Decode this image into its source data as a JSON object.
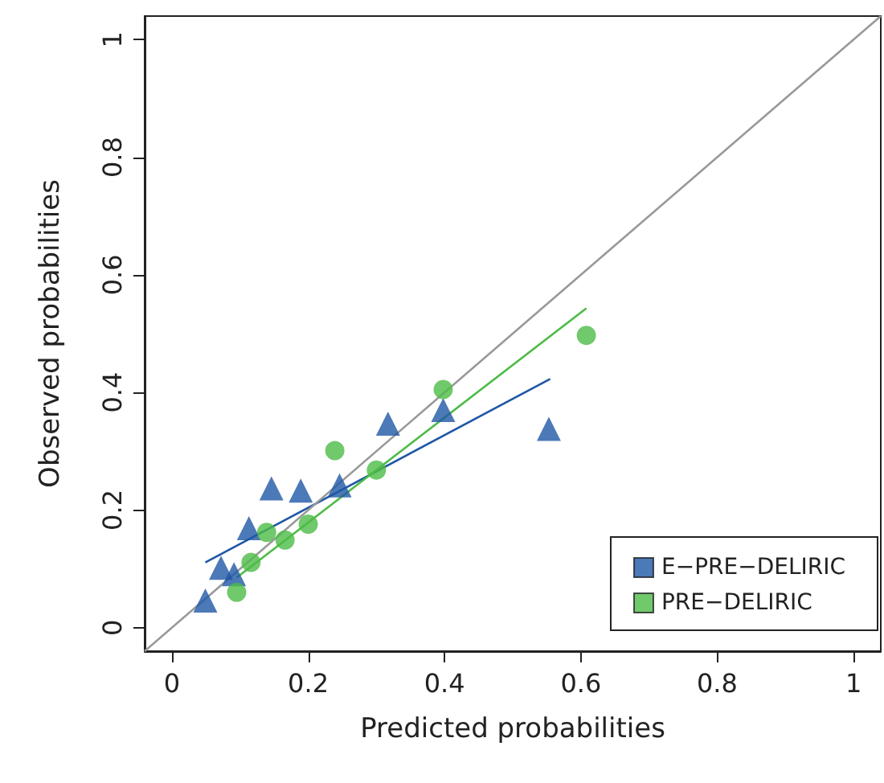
{
  "chart_data": {
    "type": "scatter",
    "xlabel": "Predicted probabilities",
    "ylabel": "Observed probabilities",
    "xlim": [
      -0.04,
      1.04
    ],
    "ylim": [
      -0.04,
      1.04
    ],
    "xticks": [
      0,
      0.2,
      0.4,
      0.6,
      0.8,
      1
    ],
    "yticks": [
      0,
      0.2,
      0.4,
      0.6,
      0.8,
      1
    ],
    "grid": false,
    "legend": "bottom right",
    "series": [
      {
        "name": "E−PRE−DELIRIC",
        "color": "#1f57a5",
        "marker": "triangle",
        "x": [
          0.049,
          0.072,
          0.091,
          0.113,
          0.146,
          0.189,
          0.246,
          0.317,
          0.398,
          0.553
        ],
        "values": [
          0.046,
          0.102,
          0.091,
          0.169,
          0.237,
          0.233,
          0.242,
          0.347,
          0.37,
          0.338
        ]
      },
      {
        "name": "PRE−DELIRIC",
        "color": "#4cbb45",
        "marker": "circle",
        "x": [
          0.095,
          0.116,
          0.139,
          0.166,
          0.2,
          0.239,
          0.3,
          0.398,
          0.608
        ],
        "values": [
          0.06,
          0.111,
          0.162,
          0.149,
          0.176,
          0.301,
          0.268,
          0.405,
          0.497
        ]
      },
      {
        "type": "line",
        "color": "#1f57a5",
        "x": [
          0.049,
          0.555
        ],
        "values": [
          0.111,
          0.423
        ]
      },
      {
        "type": "line",
        "color": "#4cbb45",
        "x": [
          0.095,
          0.608
        ],
        "values": [
          0.085,
          0.543
        ]
      },
      {
        "type": "line",
        "color": "#999999",
        "x": [
          -0.04,
          1.04
        ],
        "values": [
          -0.04,
          1.04
        ]
      }
    ]
  }
}
